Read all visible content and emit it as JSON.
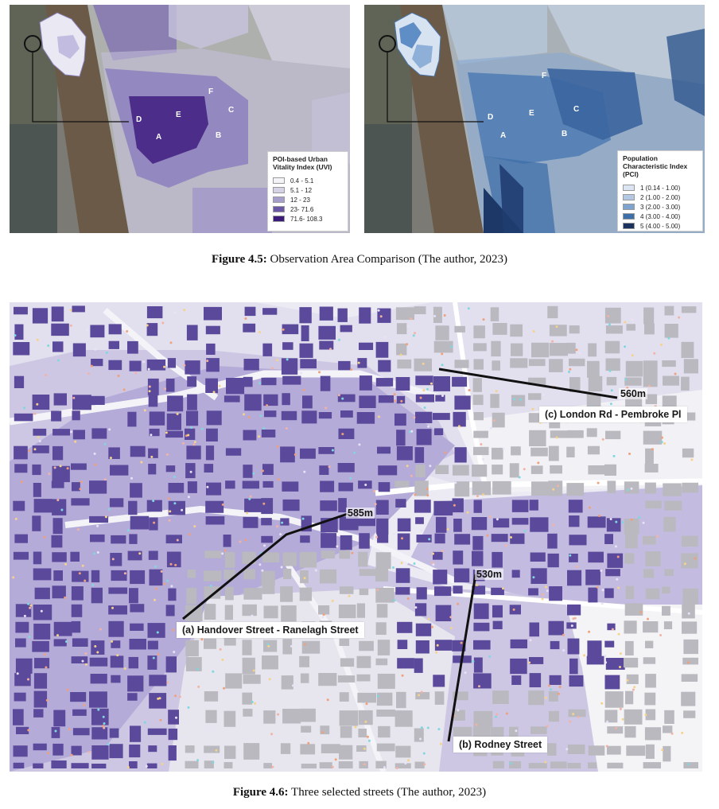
{
  "figure_45": {
    "caption_label": "Figure 4.5:",
    "caption_text": " Observation Area Comparison (The author, 2023)",
    "uvi_map": {
      "legend_title": "POI-based Urban Vitality Index (UVI)",
      "classes": [
        {
          "label": "0.4 - 5.1",
          "color": "#f4f3f8"
        },
        {
          "label": "5.1 - 12",
          "color": "#d6d3e6"
        },
        {
          "label": "12 - 23",
          "color": "#a79fcb"
        },
        {
          "label": "23- 71.6",
          "color": "#6a58a6"
        },
        {
          "label": "71.6- 108.3",
          "color": "#3a1b7a"
        }
      ],
      "area_letters": [
        "A",
        "B",
        "C",
        "D",
        "E",
        "F"
      ]
    },
    "pci_map": {
      "legend_title": "Population Characteristic Index (PCI)",
      "classes": [
        {
          "label": "1 (0.14 - 1.00)",
          "color": "#dbe5f1"
        },
        {
          "label": "2 (1.00 - 2.00)",
          "color": "#b3c9e3"
        },
        {
          "label": "3 (2.00 - 3.00)",
          "color": "#7ea3cf"
        },
        {
          "label": "4 (3.00 - 4.00)",
          "color": "#3f6fa8"
        },
        {
          "label": "5 (4.00 - 5.00)",
          "color": "#1b325f"
        }
      ],
      "area_letters": [
        "A",
        "B",
        "C",
        "D",
        "E",
        "F"
      ]
    }
  },
  "figure_46": {
    "caption_label": "Figure 4.6:",
    "caption_text": " Three selected streets (The author, 2023)",
    "streets": [
      {
        "id": "a",
        "label": "(a) Handover Street - Ranelagh Street",
        "distance": "585m"
      },
      {
        "id": "b",
        "label": "(b) Rodney Street",
        "distance": "530m"
      },
      {
        "id": "c",
        "label": "(c) London Rd - Pembroke Pl",
        "distance": "560m"
      }
    ],
    "colors": {
      "background": "#ecebf4",
      "zone_light": "#d7d2ea",
      "zone_mid": "#b4aad6",
      "building_vital": "#5b4a9b",
      "building_other": "#b9b9bf",
      "street_line": "#111111"
    }
  }
}
